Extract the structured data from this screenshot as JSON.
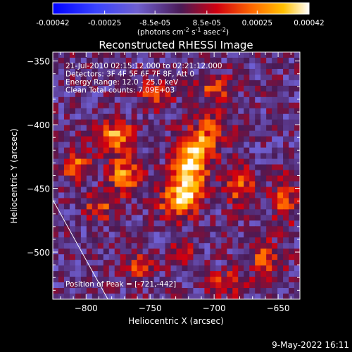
{
  "colorbar": {
    "tick_labels": [
      "-0.00042",
      "-0.00025",
      "-8.5e-05",
      "8.5e-05",
      "0.00025",
      "0.00042"
    ],
    "tick_values": [
      -0.00042,
      -0.00025,
      -8.5e-05,
      8.5e-05,
      0.00025,
      0.00042
    ],
    "range": [
      -0.00042,
      0.00042
    ],
    "unit_text": "(photons cm",
    "unit_exp1": "-2",
    "unit_mid": " s",
    "unit_exp2": "-1",
    "unit_mid2": " asec",
    "unit_exp3": "-2",
    "unit_close": ")"
  },
  "chart_data": {
    "type": "heatmap",
    "title": "Reconstructed RHESSI Image",
    "xlabel": "Heliocentric X (arcsec)",
    "ylabel": "Heliocentric Y (arcsec)",
    "xlim": [
      -826,
      -633
    ],
    "ylim": [
      -537,
      -343
    ],
    "x_ticks": [
      -800,
      -750,
      -700,
      -650
    ],
    "y_ticks": [
      -350,
      -400,
      -450,
      -500
    ],
    "x_tick_labels": [
      "−800",
      "−750",
      "−700",
      "−650"
    ],
    "y_tick_labels": [
      "−350",
      "−400",
      "−450",
      "−500"
    ],
    "annotations": [
      "21-Jul-2010 02:15:12.000 to 02:21:12.000",
      "Detectors: 3F 4F 5F 6F 7F 8F, Att 0",
      "Energy Range: 12.0 - 25.0 keV",
      "Clean     Total counts: 7.09E+03"
    ],
    "peak_label": "Position of Peak = [-721,-442]",
    "peak": [
      -721,
      -442
    ],
    "limb_line": [
      [
        -826,
        -459
      ],
      [
        -783,
        -537
      ]
    ],
    "blobs": [
      {
        "x": -720,
        "y": -442,
        "amp": 0.00042,
        "sx": 9,
        "sy": 14
      },
      {
        "x": -712,
        "y": -418,
        "amp": 0.00034,
        "sx": 10,
        "sy": 10
      },
      {
        "x": -730,
        "y": -462,
        "amp": 0.00028,
        "sx": 10,
        "sy": 8
      },
      {
        "x": -778,
        "y": -410,
        "amp": 0.00034,
        "sx": 10,
        "sy": 9
      },
      {
        "x": -770,
        "y": -440,
        "amp": 0.0003,
        "sx": 9,
        "sy": 10
      },
      {
        "x": -808,
        "y": -432,
        "amp": 0.00026,
        "sx": 8,
        "sy": 8
      },
      {
        "x": -790,
        "y": -465,
        "amp": 0.00022,
        "sx": 9,
        "sy": 7
      },
      {
        "x": -745,
        "y": -375,
        "amp": 0.00022,
        "sx": 9,
        "sy": 8
      },
      {
        "x": -700,
        "y": -372,
        "amp": 0.0002,
        "sx": 10,
        "sy": 8
      },
      {
        "x": -680,
        "y": -448,
        "amp": 0.00024,
        "sx": 9,
        "sy": 10
      },
      {
        "x": -645,
        "y": -458,
        "amp": 0.00024,
        "sx": 7,
        "sy": 12
      },
      {
        "x": -660,
        "y": -505,
        "amp": 0.00022,
        "sx": 10,
        "sy": 9
      },
      {
        "x": -690,
        "y": -525,
        "amp": 0.0002,
        "sx": 11,
        "sy": 7
      },
      {
        "x": -760,
        "y": -512,
        "amp": 0.00018,
        "sx": 9,
        "sy": 8
      },
      {
        "x": -725,
        "y": -500,
        "amp": 0.00014,
        "sx": 8,
        "sy": 8
      },
      {
        "x": -700,
        "y": -400,
        "amp": 0.00016,
        "sx": 9,
        "sy": 8
      }
    ]
  },
  "timestamp": "9-May-2022 16:11"
}
